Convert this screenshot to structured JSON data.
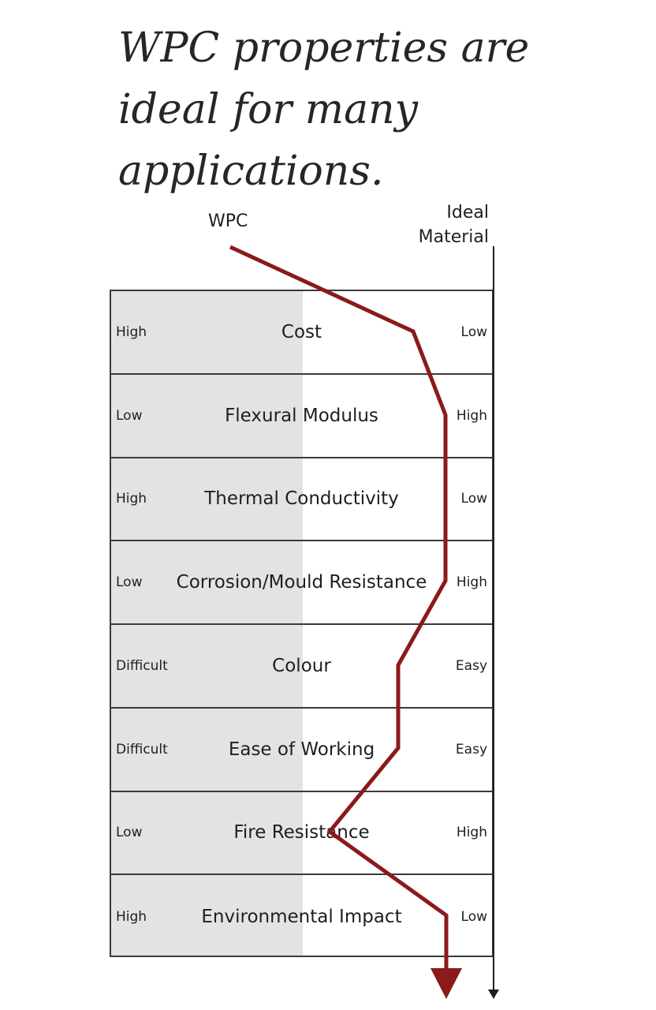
{
  "title": "WPC properties are ideal for many applications.",
  "headers": {
    "left": "WPC",
    "right_line1": "Ideal",
    "right_line2": "Material"
  },
  "rows": [
    {
      "label": "Cost",
      "left": "High",
      "right": "Low"
    },
    {
      "label": "Flexural Modulus",
      "left": "Low",
      "right": "High"
    },
    {
      "label": "Thermal Conductivity",
      "left": "High",
      "right": "Low"
    },
    {
      "label": "Corrosion/Mould Resistance",
      "left": "Low",
      "right": "High"
    },
    {
      "label": "Colour",
      "left": "Difficult",
      "right": "Easy"
    },
    {
      "label": "Ease of Working",
      "left": "Difficult",
      "right": "Easy"
    },
    {
      "label": "Fire Resistance",
      "left": "Low",
      "right": "High"
    },
    {
      "label": "Environmental Impact",
      "left": "High",
      "right": "Low"
    }
  ],
  "colors": {
    "wpc_line": "#8b1a1a",
    "shade": "#e3e3e3",
    "border": "#3a3a3a"
  }
}
